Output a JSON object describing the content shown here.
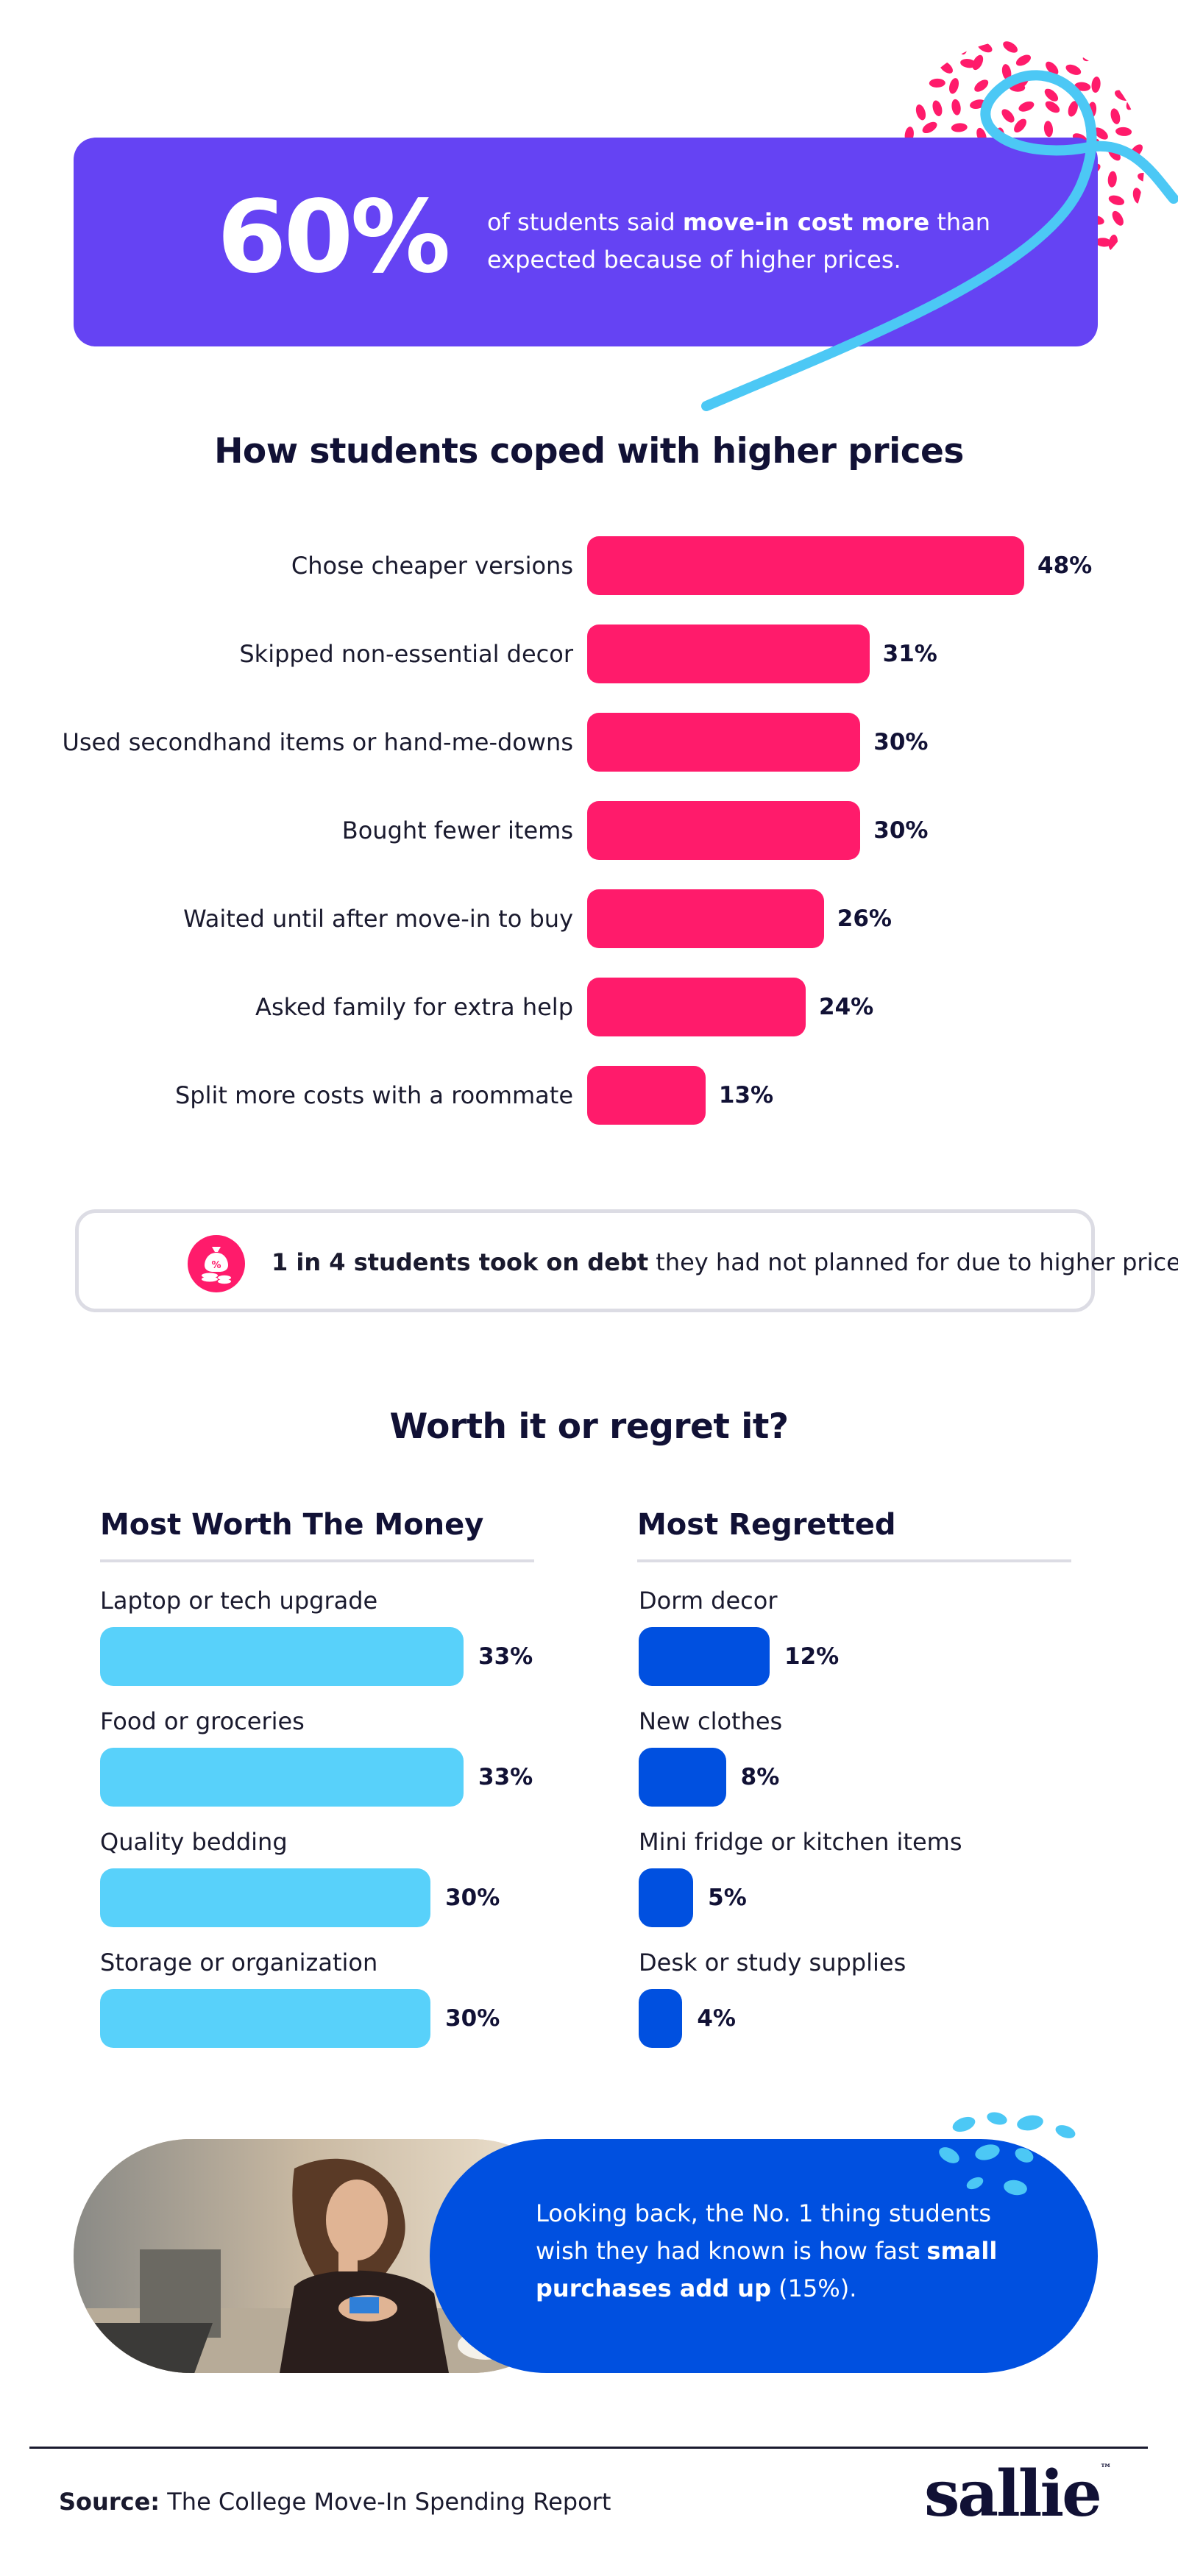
{
  "colors": {
    "hero": "#6543f3",
    "coping_bar": "#ff1b6b",
    "worth_bar": "#58d1fa",
    "regret_bar": "#0050e0",
    "dark_text": "#111135",
    "accent_pink": "#ff1b6b",
    "accent_cyan": "#4cc8f5"
  },
  "hero": {
    "percent": "60%",
    "text_before": "of students said ",
    "text_bold": "move-in cost more",
    "text_after": " than expected because of higher prices."
  },
  "chart_data": [
    {
      "type": "bar",
      "orientation": "horizontal",
      "title": "How students coped with higher prices",
      "categories": [
        "Chose cheaper versions",
        "Skipped non-essential decor",
        "Used secondhand items or hand-me-downs",
        "Bought fewer items",
        "Waited until after move-in to buy",
        "Asked family for extra help",
        "Split more costs with a roommate"
      ],
      "values": [
        48,
        31,
        30,
        30,
        26,
        24,
        13
      ],
      "value_labels": [
        "48%",
        "31%",
        "30%",
        "30%",
        "26%",
        "24%",
        "13%"
      ],
      "unit": "%",
      "grid": false
    },
    {
      "type": "bar",
      "orientation": "horizontal",
      "title": "Most Worth The Money",
      "categories": [
        "Laptop or tech upgrade",
        "Food or groceries",
        "Quality bedding",
        "Storage or organization"
      ],
      "values": [
        33,
        33,
        30,
        30
      ],
      "value_labels": [
        "33%",
        "33%",
        "30%",
        "30%"
      ],
      "unit": "%",
      "grid": false
    },
    {
      "type": "bar",
      "orientation": "horizontal",
      "title": "Most Regretted",
      "categories": [
        "Dorm decor",
        "New clothes",
        "Mini fridge or kitchen items",
        "Desk or study supplies"
      ],
      "values": [
        12,
        8,
        5,
        4
      ],
      "value_labels": [
        "12%",
        "8%",
        "5%",
        "4%"
      ],
      "unit": "%",
      "grid": false
    }
  ],
  "debt": {
    "icon": "money-bag-coins-icon",
    "bold": "1 in 4 students took on debt",
    "rest": " they had not planned for due to higher prices."
  },
  "worth_section": {
    "title": "Worth it or regret it?"
  },
  "lookback": {
    "text_before": "Looking back, the No. 1 thing students wish they had known is how fast ",
    "text_bold": "small purchases add up",
    "text_after": " (15%)."
  },
  "footer": {
    "source_label": "Source:",
    "source_text": " The College Move-In Spending Report",
    "logo": "sallie"
  }
}
